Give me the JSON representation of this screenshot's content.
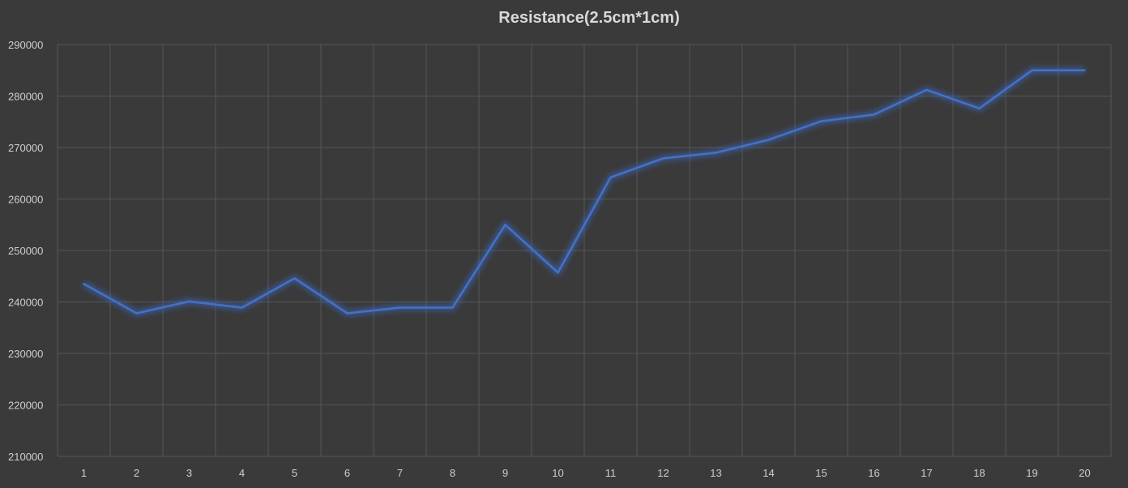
{
  "chart_data": {
    "type": "line",
    "title": "Resistance(2.5cm*1cm)",
    "xlabel": "",
    "ylabel": "",
    "x": [
      1,
      2,
      3,
      4,
      5,
      6,
      7,
      8,
      9,
      10,
      11,
      12,
      13,
      14,
      15,
      16,
      17,
      18,
      19,
      20
    ],
    "series": [
      {
        "name": "",
        "values": [
          243500,
          237800,
          240100,
          238900,
          244600,
          237800,
          238900,
          238900,
          255000,
          245700,
          264200,
          267900,
          269000,
          271500,
          275100,
          276400,
          281200,
          277600,
          285000,
          285000
        ]
      }
    ],
    "ylim": [
      210000,
      290000
    ],
    "yticks": [
      "290000",
      "280000",
      "270000",
      "260000",
      "250000",
      "240000",
      "230000",
      "220000",
      "210000"
    ],
    "xticks": [
      "1",
      "2",
      "3",
      "4",
      "5",
      "6",
      "7",
      "8",
      "9",
      "10",
      "11",
      "12",
      "13",
      "14",
      "15",
      "16",
      "17",
      "18",
      "19",
      "20"
    ],
    "grid": true,
    "legend": "none",
    "colors": {
      "background": "#3a3a3a",
      "line": "#4472c4",
      "glow": "#3b6fe0",
      "grid": "#555555",
      "text": "#cfcfcf"
    }
  }
}
